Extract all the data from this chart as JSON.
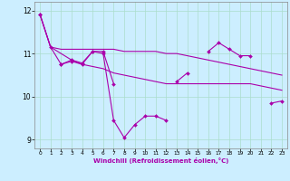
{
  "x": [
    0,
    1,
    2,
    3,
    4,
    5,
    6,
    7,
    8,
    9,
    10,
    11,
    12,
    13,
    14,
    15,
    16,
    17,
    18,
    19,
    20,
    21,
    22,
    23
  ],
  "line1": [
    11.9,
    11.15,
    10.75,
    10.85,
    10.78,
    11.05,
    11.05,
    10.3,
    null,
    null,
    null,
    null,
    null,
    10.35,
    10.55,
    null,
    11.05,
    11.25,
    11.1,
    10.95,
    10.95,
    null,
    9.85,
    9.9
  ],
  "line2": [
    11.9,
    null,
    10.75,
    10.82,
    10.75,
    11.05,
    11.0,
    9.45,
    9.05,
    9.35,
    9.55,
    9.55,
    9.45,
    null,
    null,
    null,
    null,
    null,
    null,
    null,
    null,
    null,
    null,
    null
  ],
  "line3": [
    11.9,
    11.15,
    11.1,
    11.1,
    11.1,
    11.1,
    11.1,
    11.1,
    11.05,
    11.05,
    11.05,
    11.05,
    11.0,
    11.0,
    10.95,
    10.9,
    10.85,
    10.8,
    10.75,
    10.7,
    10.65,
    10.6,
    10.55,
    10.5
  ],
  "line4": [
    11.9,
    11.15,
    11.0,
    10.85,
    10.75,
    10.7,
    10.65,
    10.55,
    10.5,
    10.45,
    10.4,
    10.35,
    10.3,
    10.3,
    10.3,
    10.3,
    10.3,
    10.3,
    10.3,
    10.3,
    10.3,
    10.25,
    10.2,
    10.15
  ],
  "bg_color": "#cceeff",
  "line_color": "#aa00aa",
  "grid_color": "#aaddcc",
  "xlabel": "Windchill (Refroidissement éolien,°C)",
  "ylim": [
    8.8,
    12.2
  ],
  "xlim": [
    -0.5,
    23.5
  ],
  "yticks": [
    9,
    10,
    11,
    12
  ],
  "xticks": [
    0,
    1,
    2,
    3,
    4,
    5,
    6,
    7,
    8,
    9,
    10,
    11,
    12,
    13,
    14,
    15,
    16,
    17,
    18,
    19,
    20,
    21,
    22,
    23
  ]
}
